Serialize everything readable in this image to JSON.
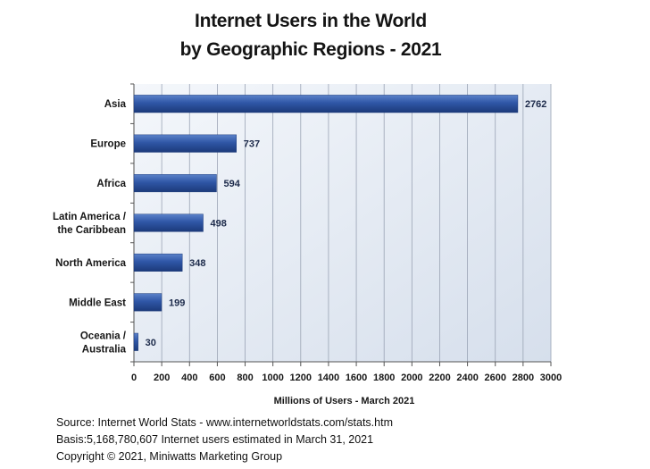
{
  "chart_data": {
    "type": "bar",
    "orientation": "horizontal",
    "title": "Internet Users in the World",
    "subtitle": "by Geographic Regions -  2021",
    "categories": [
      [
        "Asia"
      ],
      [
        "Europe"
      ],
      [
        "Africa"
      ],
      [
        "Latin America /",
        "the Caribbean"
      ],
      [
        "North America"
      ],
      [
        "Middle East"
      ],
      [
        "Oceania  /",
        "Australia"
      ]
    ],
    "values": [
      2762,
      737,
      594,
      498,
      348,
      199,
      30
    ],
    "xlabel": "Millions of Users - March 2021",
    "ylabel": "",
    "xlim": [
      0,
      3000
    ],
    "xticks": [
      0,
      200,
      400,
      600,
      800,
      1000,
      1200,
      1400,
      1600,
      1800,
      2000,
      2200,
      2400,
      2600,
      2800,
      3000
    ],
    "grid": true,
    "bar_color": "#2f56a6",
    "plot_background": "#dfe6f1",
    "gridline_color": "#9aa3b4"
  },
  "footer": {
    "source": "Source: Internet World Stats - www.internetworldstats.com/stats.htm",
    "basis": "Basis:5,168,780,607 Internet users estimated in March 31, 2021",
    "copyright": "Copyright © 2021, Miniwatts Marketing Group"
  }
}
